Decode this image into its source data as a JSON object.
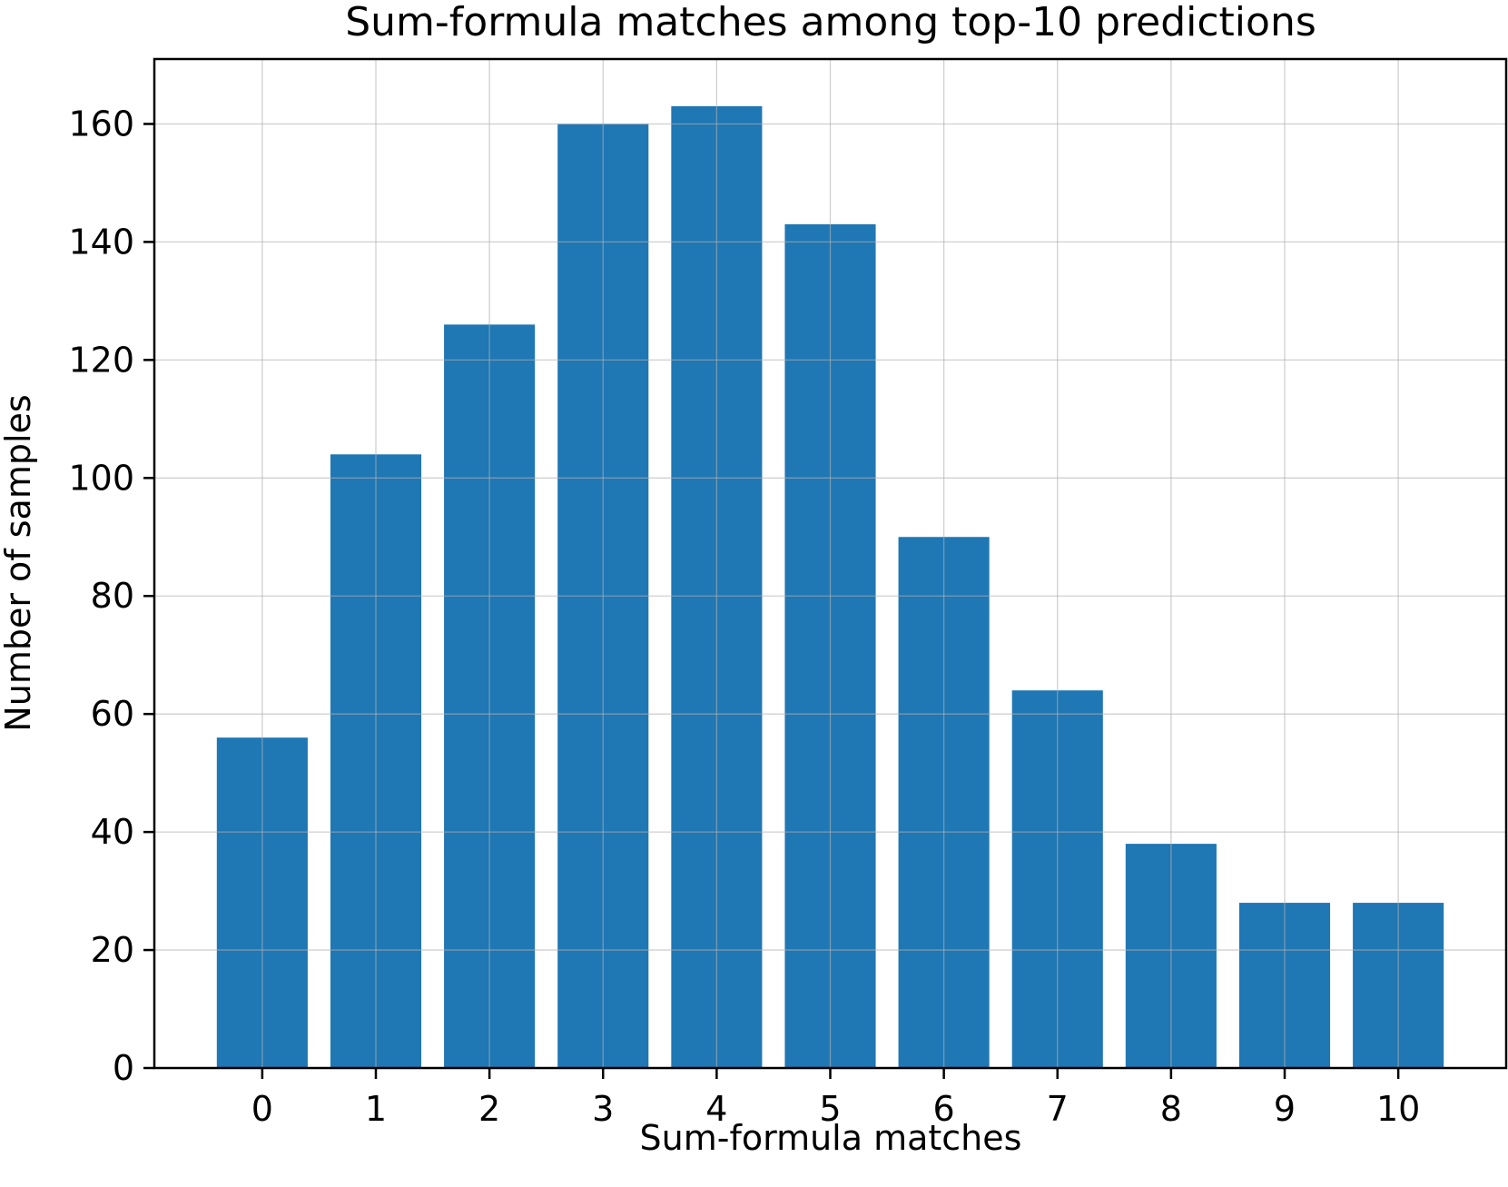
{
  "chart_data": {
    "type": "bar",
    "title": "Sum-formula matches among top-10 predictions",
    "xlabel": "Sum-formula matches",
    "ylabel": "Number of samples",
    "categories": [
      "0",
      "1",
      "2",
      "3",
      "4",
      "5",
      "6",
      "7",
      "8",
      "9",
      "10"
    ],
    "values": [
      56,
      104,
      126,
      160,
      163,
      143,
      90,
      64,
      38,
      28,
      28
    ],
    "ylim": [
      0,
      171
    ],
    "yticks": [
      0,
      20,
      40,
      60,
      80,
      100,
      120,
      140,
      160
    ],
    "xlim": [
      -0.95,
      10.95
    ],
    "grid": true,
    "bar_color": "#1f77b4"
  }
}
